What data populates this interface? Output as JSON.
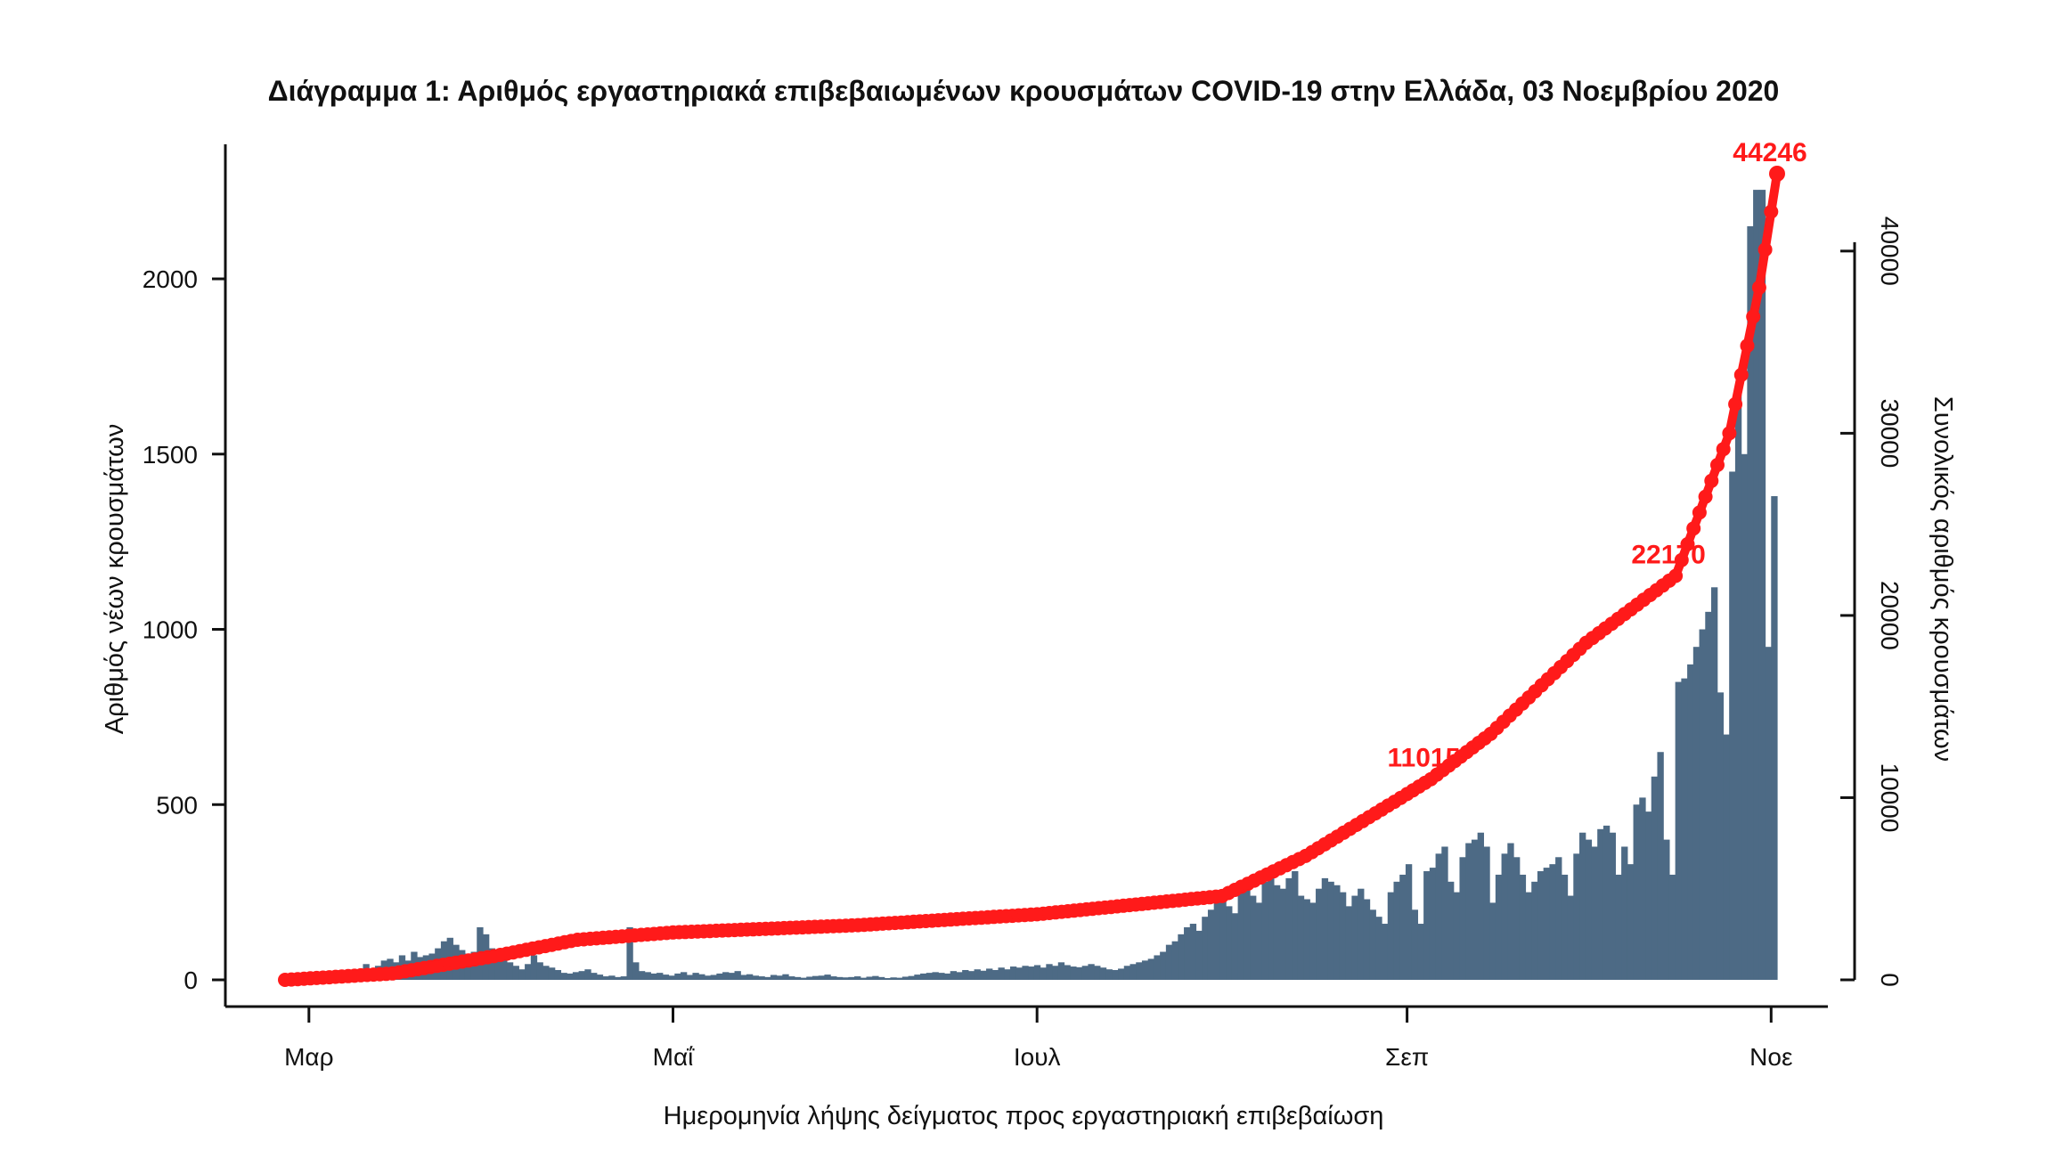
{
  "chart_data": {
    "type": "bar",
    "title": "Διάγραμμα 1: Αριθμός εργαστηριακά επιβεβαιωμένων κρουσμάτων COVID-19 στην Ελλάδα, 03 Νοεμβρίου 2020",
    "xlabel": "Ημερομηνία λήψης δείγματος προς εργαστηριακή επιβεβαίωση",
    "ylabel_left": "Αριθμός νέων κρουσμάτων",
    "ylabel_right": "Συνολικός αριθμός κρουσμάτων",
    "x_range": [
      "2020-02-26",
      "2020-11-02"
    ],
    "x_tick_labels": [
      {
        "date": "2020-03-01",
        "label": "Μαρ"
      },
      {
        "date": "2020-05-01",
        "label": "Μαΐ"
      },
      {
        "date": "2020-07-01",
        "label": "Ιουλ"
      },
      {
        "date": "2020-09-01",
        "label": "Σεπ"
      },
      {
        "date": "2020-11-01",
        "label": "Νοε"
      }
    ],
    "ylim_left": [
      0,
      2300
    ],
    "yticks_left": [
      "0",
      "500",
      "1000",
      "1500",
      "2000"
    ],
    "ylim_right": [
      0,
      44246
    ],
    "yticks_right": [
      "0",
      "10000",
      "20000",
      "30000",
      "40000"
    ],
    "grid": false,
    "colors": {
      "bars": "#4d6a85",
      "cumulative": "#ff1a1a"
    },
    "series": [
      {
        "type": "bar",
        "daily_cases": [
          1,
          1,
          1,
          2,
          3,
          5,
          7,
          8,
          10,
          15,
          18,
          22,
          30,
          45,
          28,
          40,
          55,
          60,
          50,
          70,
          55,
          80,
          65,
          70,
          75,
          90,
          110,
          120,
          100,
          85,
          75,
          80,
          150,
          130,
          90,
          70,
          60,
          50,
          40,
          30,
          45,
          70,
          50,
          40,
          35,
          28,
          20,
          18,
          22,
          25,
          30,
          20,
          15,
          10,
          12,
          8,
          10,
          150,
          50,
          25,
          22,
          18,
          20,
          15,
          12,
          18,
          22,
          14,
          20,
          16,
          12,
          14,
          18,
          22,
          20,
          25,
          14,
          16,
          12,
          10,
          8,
          14,
          12,
          16,
          10,
          8,
          6,
          9,
          11,
          12,
          15,
          10,
          8,
          7,
          8,
          10,
          6,
          9,
          11,
          8,
          5,
          7,
          6,
          9,
          11,
          15,
          18,
          20,
          22,
          20,
          18,
          25,
          22,
          28,
          25,
          30,
          26,
          32,
          28,
          35,
          30,
          38,
          35,
          40,
          38,
          42,
          35,
          45,
          40,
          50,
          42,
          38,
          36,
          40,
          45,
          40,
          35,
          30,
          28,
          32,
          40,
          45,
          50,
          55,
          60,
          70,
          80,
          100,
          110,
          130,
          150,
          160,
          140,
          180,
          200,
          220,
          230,
          210,
          190,
          250,
          260,
          240,
          220,
          280,
          300,
          270,
          260,
          290,
          310,
          240,
          230,
          220,
          260,
          290,
          280,
          270,
          250,
          210,
          240,
          260,
          230,
          200,
          180,
          160,
          250,
          280,
          300,
          330,
          200,
          160,
          310,
          320,
          360,
          380,
          280,
          250,
          350,
          390,
          400,
          420,
          380,
          220,
          300,
          360,
          390,
          350,
          300,
          250,
          280,
          310,
          320,
          330,
          350,
          300,
          240,
          360,
          420,
          400,
          380,
          430,
          440,
          420,
          300,
          380,
          330,
          500,
          520,
          480,
          580,
          650,
          400,
          300,
          850,
          860,
          900,
          950,
          1000,
          1050,
          1120,
          820,
          700,
          1450,
          1700,
          1500,
          2150,
          2300,
          2400,
          950,
          1380
        ]
      },
      {
        "type": "line",
        "name": "cumulative",
        "values_at_dates": [
          {
            "date": "2020-02-26",
            "total": 0
          },
          {
            "date": "2020-03-15",
            "total": 350
          },
          {
            "date": "2020-04-01",
            "total": 1300
          },
          {
            "date": "2020-04-15",
            "total": 2200
          },
          {
            "date": "2020-05-01",
            "total": 2600
          },
          {
            "date": "2020-06-01",
            "total": 3000
          },
          {
            "date": "2020-07-01",
            "total": 3600
          },
          {
            "date": "2020-08-01",
            "total": 4600
          },
          {
            "date": "2020-08-15",
            "total": 6800
          },
          {
            "date": "2020-09-01",
            "total": 10200
          },
          {
            "date": "2020-09-05",
            "total": 11015
          },
          {
            "date": "2020-09-15",
            "total": 13500
          },
          {
            "date": "2020-10-01",
            "total": 18500
          },
          {
            "date": "2020-10-16",
            "total": 22170
          },
          {
            "date": "2020-10-25",
            "total": 30000
          },
          {
            "date": "2020-10-30",
            "total": 38000
          },
          {
            "date": "2020-11-02",
            "total": 44246
          }
        ]
      }
    ],
    "annotations": [
      {
        "date": "2020-09-05",
        "text": "11015"
      },
      {
        "date": "2020-10-16",
        "text": "22170"
      },
      {
        "date": "2020-11-02",
        "text": "44246"
      }
    ]
  }
}
